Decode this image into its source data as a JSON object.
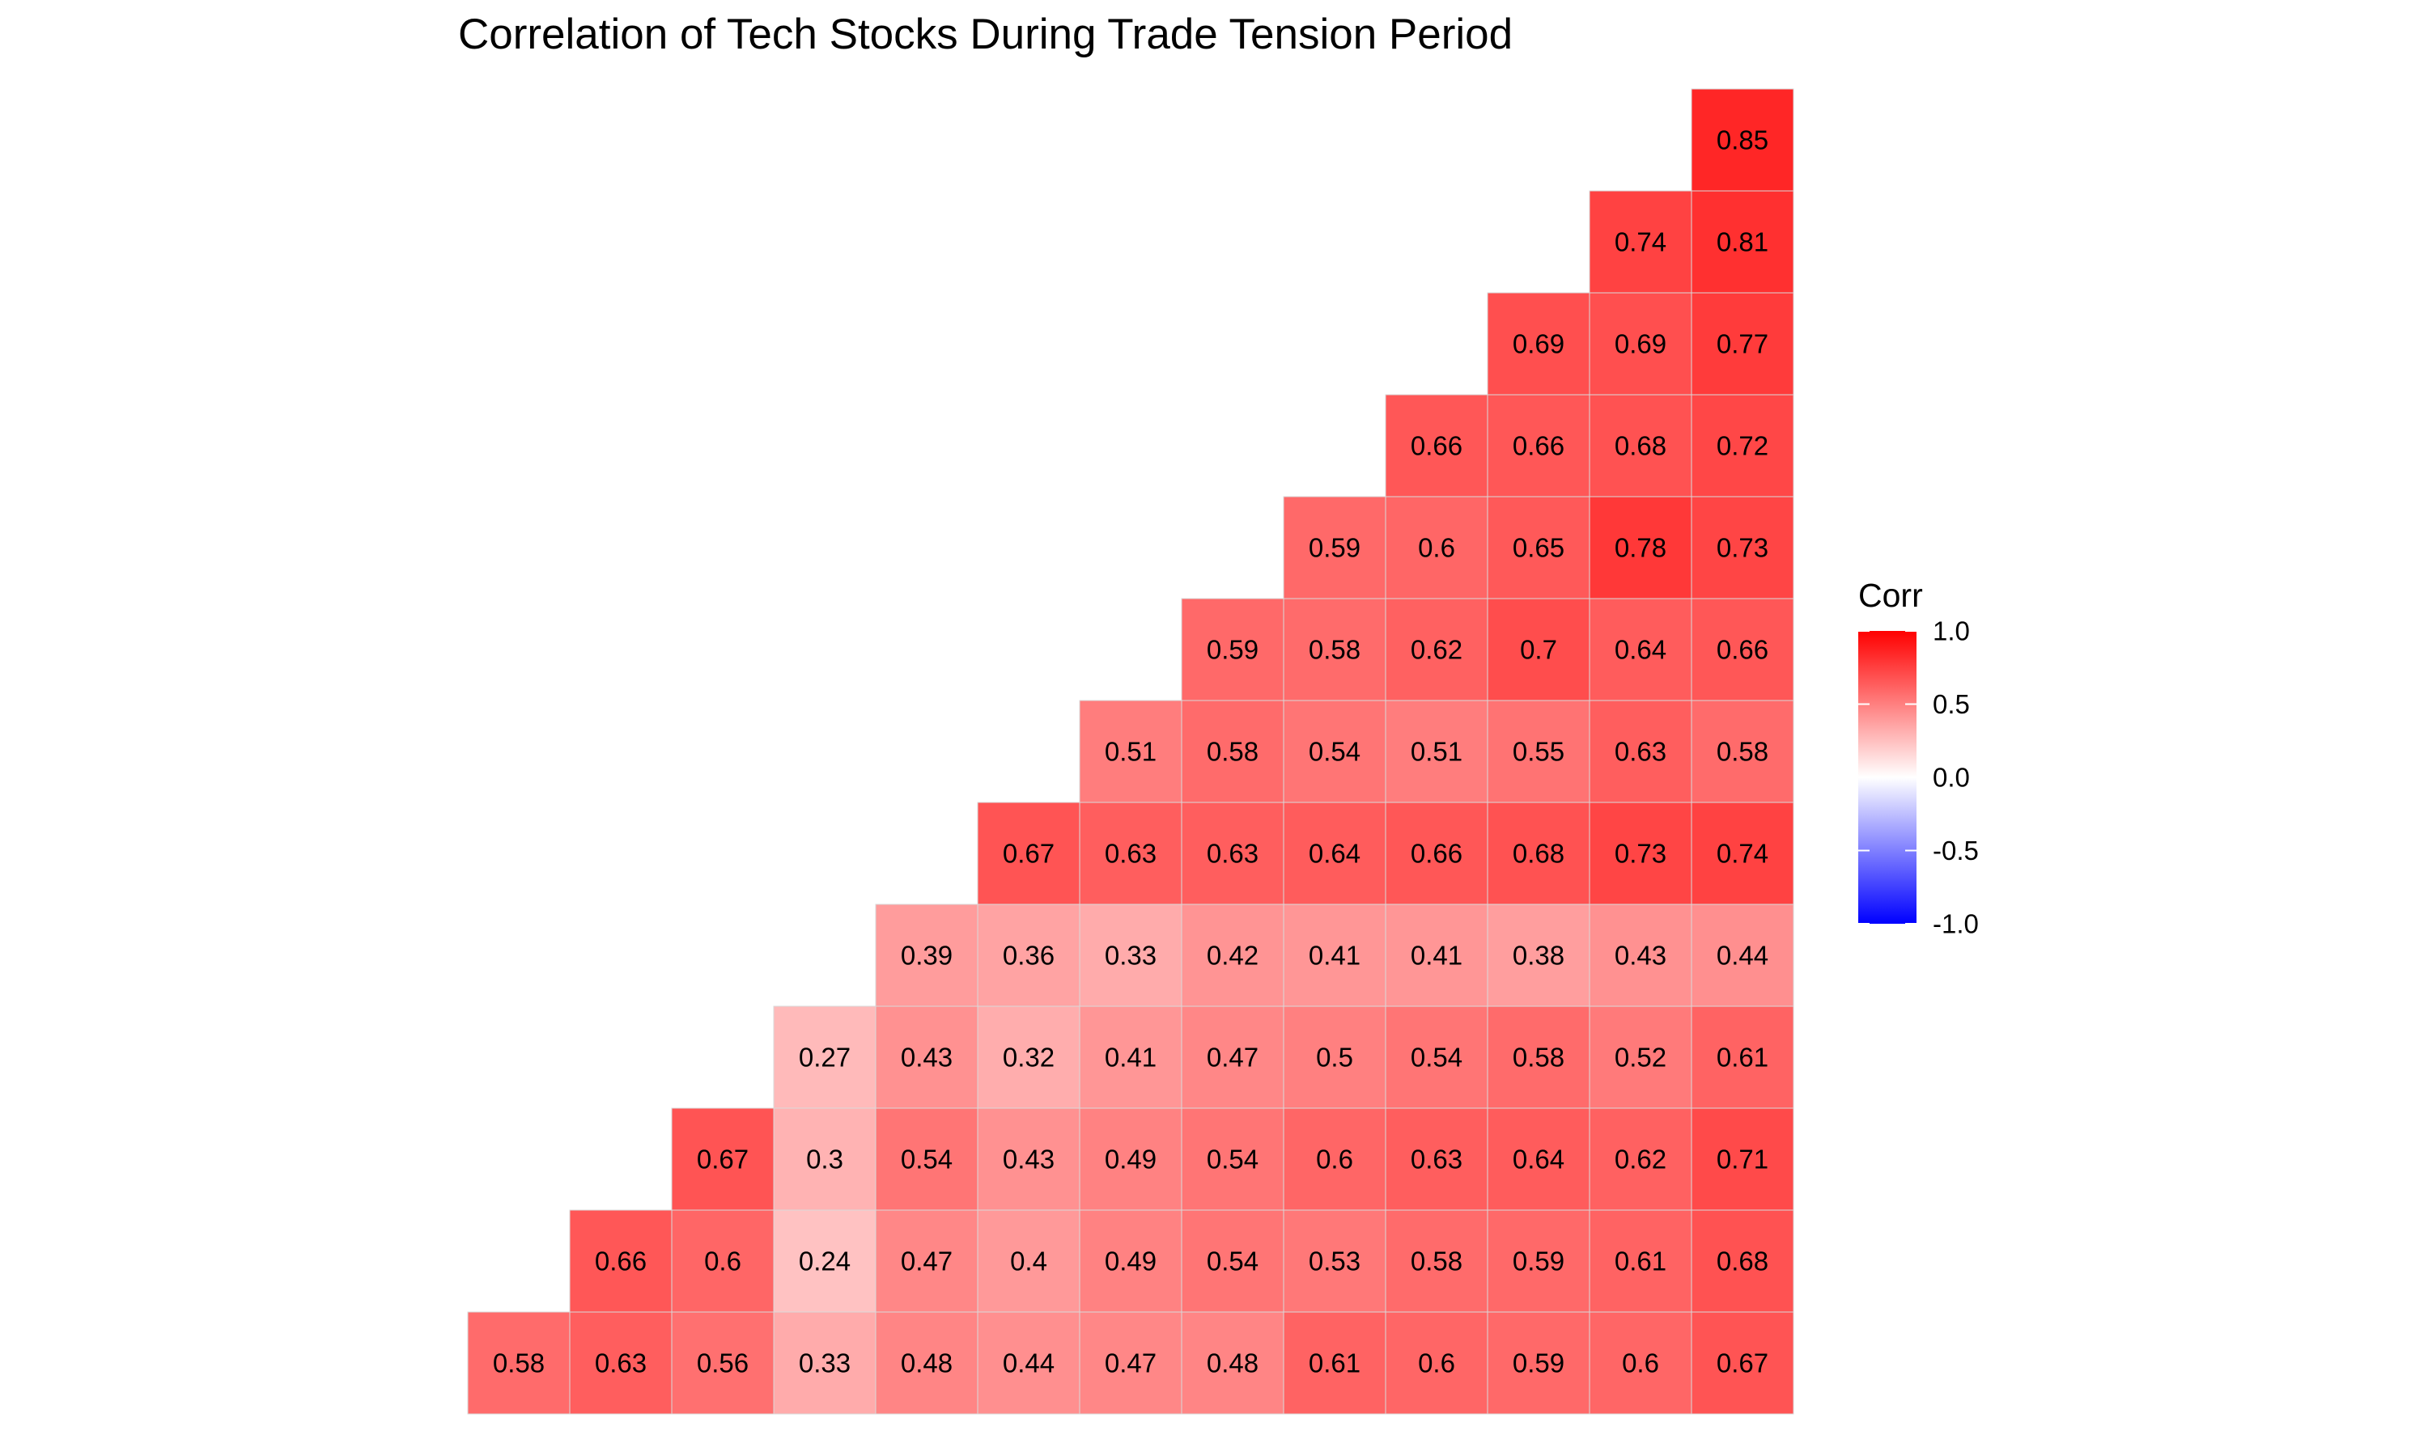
{
  "chart_data": {
    "type": "heatmap",
    "title": "Correlation of Tech Stocks During Trade Tension Period",
    "rows": [
      [
        0.85
      ],
      [
        0.74,
        0.81
      ],
      [
        0.69,
        0.69,
        0.77
      ],
      [
        0.66,
        0.66,
        0.68,
        0.72
      ],
      [
        0.59,
        0.6,
        0.65,
        0.78,
        0.73
      ],
      [
        0.59,
        0.58,
        0.62,
        0.7,
        0.64,
        0.66
      ],
      [
        0.51,
        0.58,
        0.54,
        0.51,
        0.55,
        0.63,
        0.58
      ],
      [
        0.67,
        0.63,
        0.63,
        0.64,
        0.66,
        0.68,
        0.73,
        0.74
      ],
      [
        0.39,
        0.36,
        0.33,
        0.42,
        0.41,
        0.41,
        0.38,
        0.43,
        0.44
      ],
      [
        0.27,
        0.43,
        0.32,
        0.41,
        0.47,
        0.5,
        0.54,
        0.58,
        0.52,
        0.61
      ],
      [
        0.67,
        0.3,
        0.54,
        0.43,
        0.49,
        0.54,
        0.6,
        0.63,
        0.64,
        0.62,
        0.71
      ],
      [
        0.66,
        0.6,
        0.24,
        0.47,
        0.4,
        0.49,
        0.54,
        0.53,
        0.58,
        0.59,
        0.61,
        0.68
      ],
      [
        0.58,
        0.63,
        0.56,
        0.33,
        0.48,
        0.44,
        0.47,
        0.48,
        0.61,
        0.6,
        0.59,
        0.6,
        0.67
      ]
    ],
    "legend": {
      "title": "Corr",
      "ticks": [
        "1.0",
        "0.5",
        "0.0",
        "-0.5",
        "-1.0"
      ],
      "range": [
        -1,
        1
      ],
      "colors": {
        "low": "#0000ff",
        "mid": "#ffffff",
        "high": "#ff0000"
      },
      "placement": "right"
    },
    "grid": false,
    "axis_labels_shown": false
  }
}
